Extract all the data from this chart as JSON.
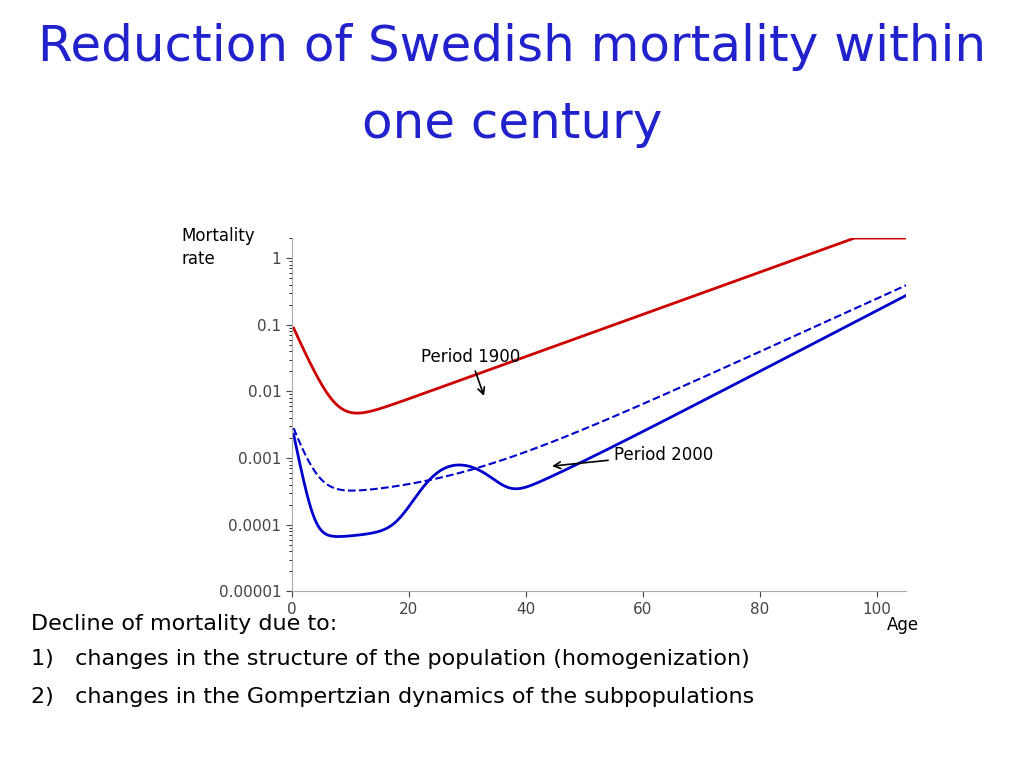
{
  "title_line1": "Reduction of Swedish mortality within",
  "title_line2": "one century",
  "title_color": "#2222CC",
  "title_fontsize": 36,
  "ylabel": "Mortality\nrate",
  "xlabel": "Age",
  "xlim": [
    0,
    105
  ],
  "xticks": [
    0,
    20,
    40,
    60,
    80,
    100
  ],
  "ytick_vals": [
    1e-05,
    0.0001,
    0.001,
    0.01,
    0.1,
    1
  ],
  "ytick_labels": [
    "0.00001",
    "0.0001",
    "0.001",
    "0.01",
    "0.1",
    "1"
  ],
  "period1900_label": "Period 1900",
  "period2000_label": "Period 2000",
  "red_color": "#CC0000",
  "blue_color": "#0000CC",
  "text_decline": "Decline of mortality due to:",
  "text_item1": "1)   changes in the structure of the population (homogenization)",
  "text_item2": "2)   changes in the Gompertzian dynamics of the subpopulations",
  "background_color": "#ffffff"
}
